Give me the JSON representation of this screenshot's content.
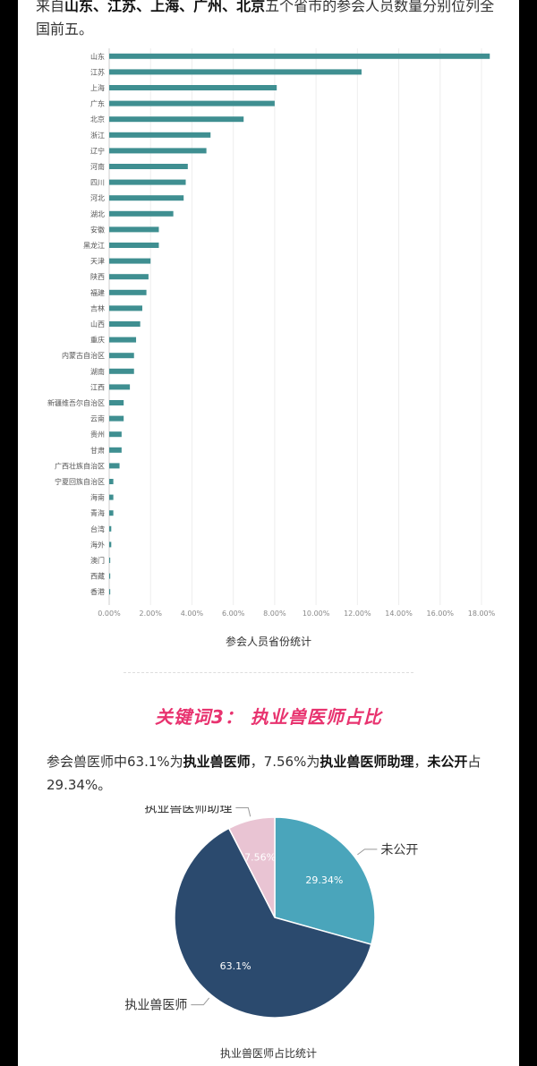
{
  "intro": {
    "prefix": "来自",
    "p1": "山东",
    "p2": "江苏",
    "p3": "上海",
    "p4": "广州",
    "p5": "北京",
    "sep": "、",
    "suffix": "五个省市的参会人员数量分别位列全国前五。"
  },
  "bar_chart_title": "参会人员省份统计",
  "section_title": "关键词3： 执业兽医师占比",
  "summary": {
    "t1": "参会兽医师中63.1%为",
    "b1": "执业兽医师",
    "t2": "，7.56%为",
    "b2": "执业兽医师助理",
    "t3": "，",
    "b3": "未公开",
    "t4": "占29.34%。"
  },
  "pie_chart_title": "执业兽医师占比统计",
  "colors": {
    "bar": "#3f8f91",
    "pink_title": "#e8336f",
    "pie_unpublished": "#4aa5bb",
    "pie_licensed": "#2b4a6e",
    "pie_assistant": "#e9c4d3"
  },
  "chart_data": [
    {
      "type": "bar",
      "orientation": "horizontal",
      "title": "参会人员省份统计",
      "categories": [
        "山东",
        "江苏",
        "上海",
        "广东",
        "北京",
        "浙江",
        "辽宁",
        "河南",
        "四川",
        "河北",
        "湖北",
        "安徽",
        "黑龙江",
        "天津",
        "陕西",
        "福建",
        "吉林",
        "山西",
        "重庆",
        "内蒙古自治区",
        "湖南",
        "江西",
        "新疆维吾尔自治区",
        "云南",
        "贵州",
        "甘肃",
        "广西壮族自治区",
        "宁夏回族自治区",
        "海南",
        "青海",
        "台湾",
        "海外",
        "澳门",
        "西藏",
        "香港"
      ],
      "values": [
        18.4,
        12.2,
        8.1,
        8.0,
        6.5,
        4.9,
        4.7,
        3.8,
        3.7,
        3.6,
        3.1,
        2.4,
        2.4,
        2.0,
        1.9,
        1.8,
        1.6,
        1.5,
        1.3,
        1.2,
        1.2,
        1.0,
        0.7,
        0.7,
        0.6,
        0.6,
        0.5,
        0.2,
        0.2,
        0.2,
        0.1,
        0.1,
        0.05,
        0.05,
        0.05
      ],
      "x_ticks": [
        "0.00%",
        "2.00%",
        "4.00%",
        "6.00%",
        "8.00%",
        "10.00%",
        "12.00%",
        "14.00%",
        "16.00%",
        "18.00%"
      ],
      "xlim": [
        0,
        18
      ],
      "grid": true
    },
    {
      "type": "pie",
      "title": "执业兽医师占比统计",
      "slices": [
        {
          "label": "未公开",
          "value": 29.34,
          "value_label": "29.34%"
        },
        {
          "label": "执业兽医师",
          "value": 63.1,
          "value_label": "63.1%"
        },
        {
          "label": "执业兽医师助理",
          "value": 7.56,
          "value_label": "7.56%"
        }
      ]
    }
  ]
}
